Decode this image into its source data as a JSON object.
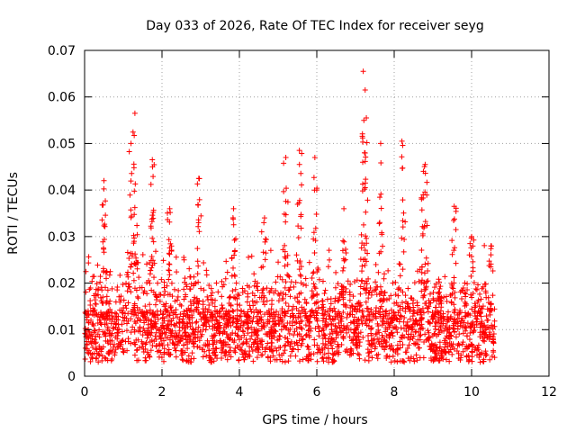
{
  "chart_data": {
    "type": "scatter",
    "title": "Day 033 of 2026, Rate Of TEC Index for receiver seyg",
    "xlabel": "GPS time / hours",
    "ylabel": "ROTI / TECUs",
    "xlim": [
      0,
      12
    ],
    "ylim": [
      0,
      0.07
    ],
    "x_ticks": [
      "0",
      "2",
      "4",
      "6",
      "8",
      "10",
      "12"
    ],
    "y_ticks": [
      "0",
      "0.01",
      "0.02",
      "0.03",
      "0.04",
      "0.05",
      "0.06",
      "0.07"
    ],
    "grid": true,
    "marker": "+",
    "color": "#ff0000",
    "data_range_x": [
      0,
      10.6
    ],
    "series": [
      {
        "name": "ROTI",
        "description": "dense cloud of ROTI values, baseline roughly 0.003-0.02 TECU with spikes",
        "peaks": [
          {
            "x": 1.3,
            "y": 0.0565
          },
          {
            "x": 1.2,
            "y": 0.05
          },
          {
            "x": 1.75,
            "y": 0.0465
          },
          {
            "x": 0.5,
            "y": 0.042
          },
          {
            "x": 2.95,
            "y": 0.0425
          },
          {
            "x": 2.2,
            "y": 0.036
          },
          {
            "x": 3.85,
            "y": 0.036
          },
          {
            "x": 4.65,
            "y": 0.034
          },
          {
            "x": 5.2,
            "y": 0.047
          },
          {
            "x": 5.55,
            "y": 0.0485
          },
          {
            "x": 5.95,
            "y": 0.047
          },
          {
            "x": 6.7,
            "y": 0.036
          },
          {
            "x": 7.2,
            "y": 0.0655
          },
          {
            "x": 7.25,
            "y": 0.0615
          },
          {
            "x": 7.65,
            "y": 0.05
          },
          {
            "x": 8.2,
            "y": 0.0505
          },
          {
            "x": 8.8,
            "y": 0.0455
          },
          {
            "x": 8.75,
            "y": 0.039
          },
          {
            "x": 9.55,
            "y": 0.0365
          },
          {
            "x": 10.0,
            "y": 0.03
          },
          {
            "x": 10.5,
            "y": 0.028
          }
        ]
      }
    ]
  }
}
